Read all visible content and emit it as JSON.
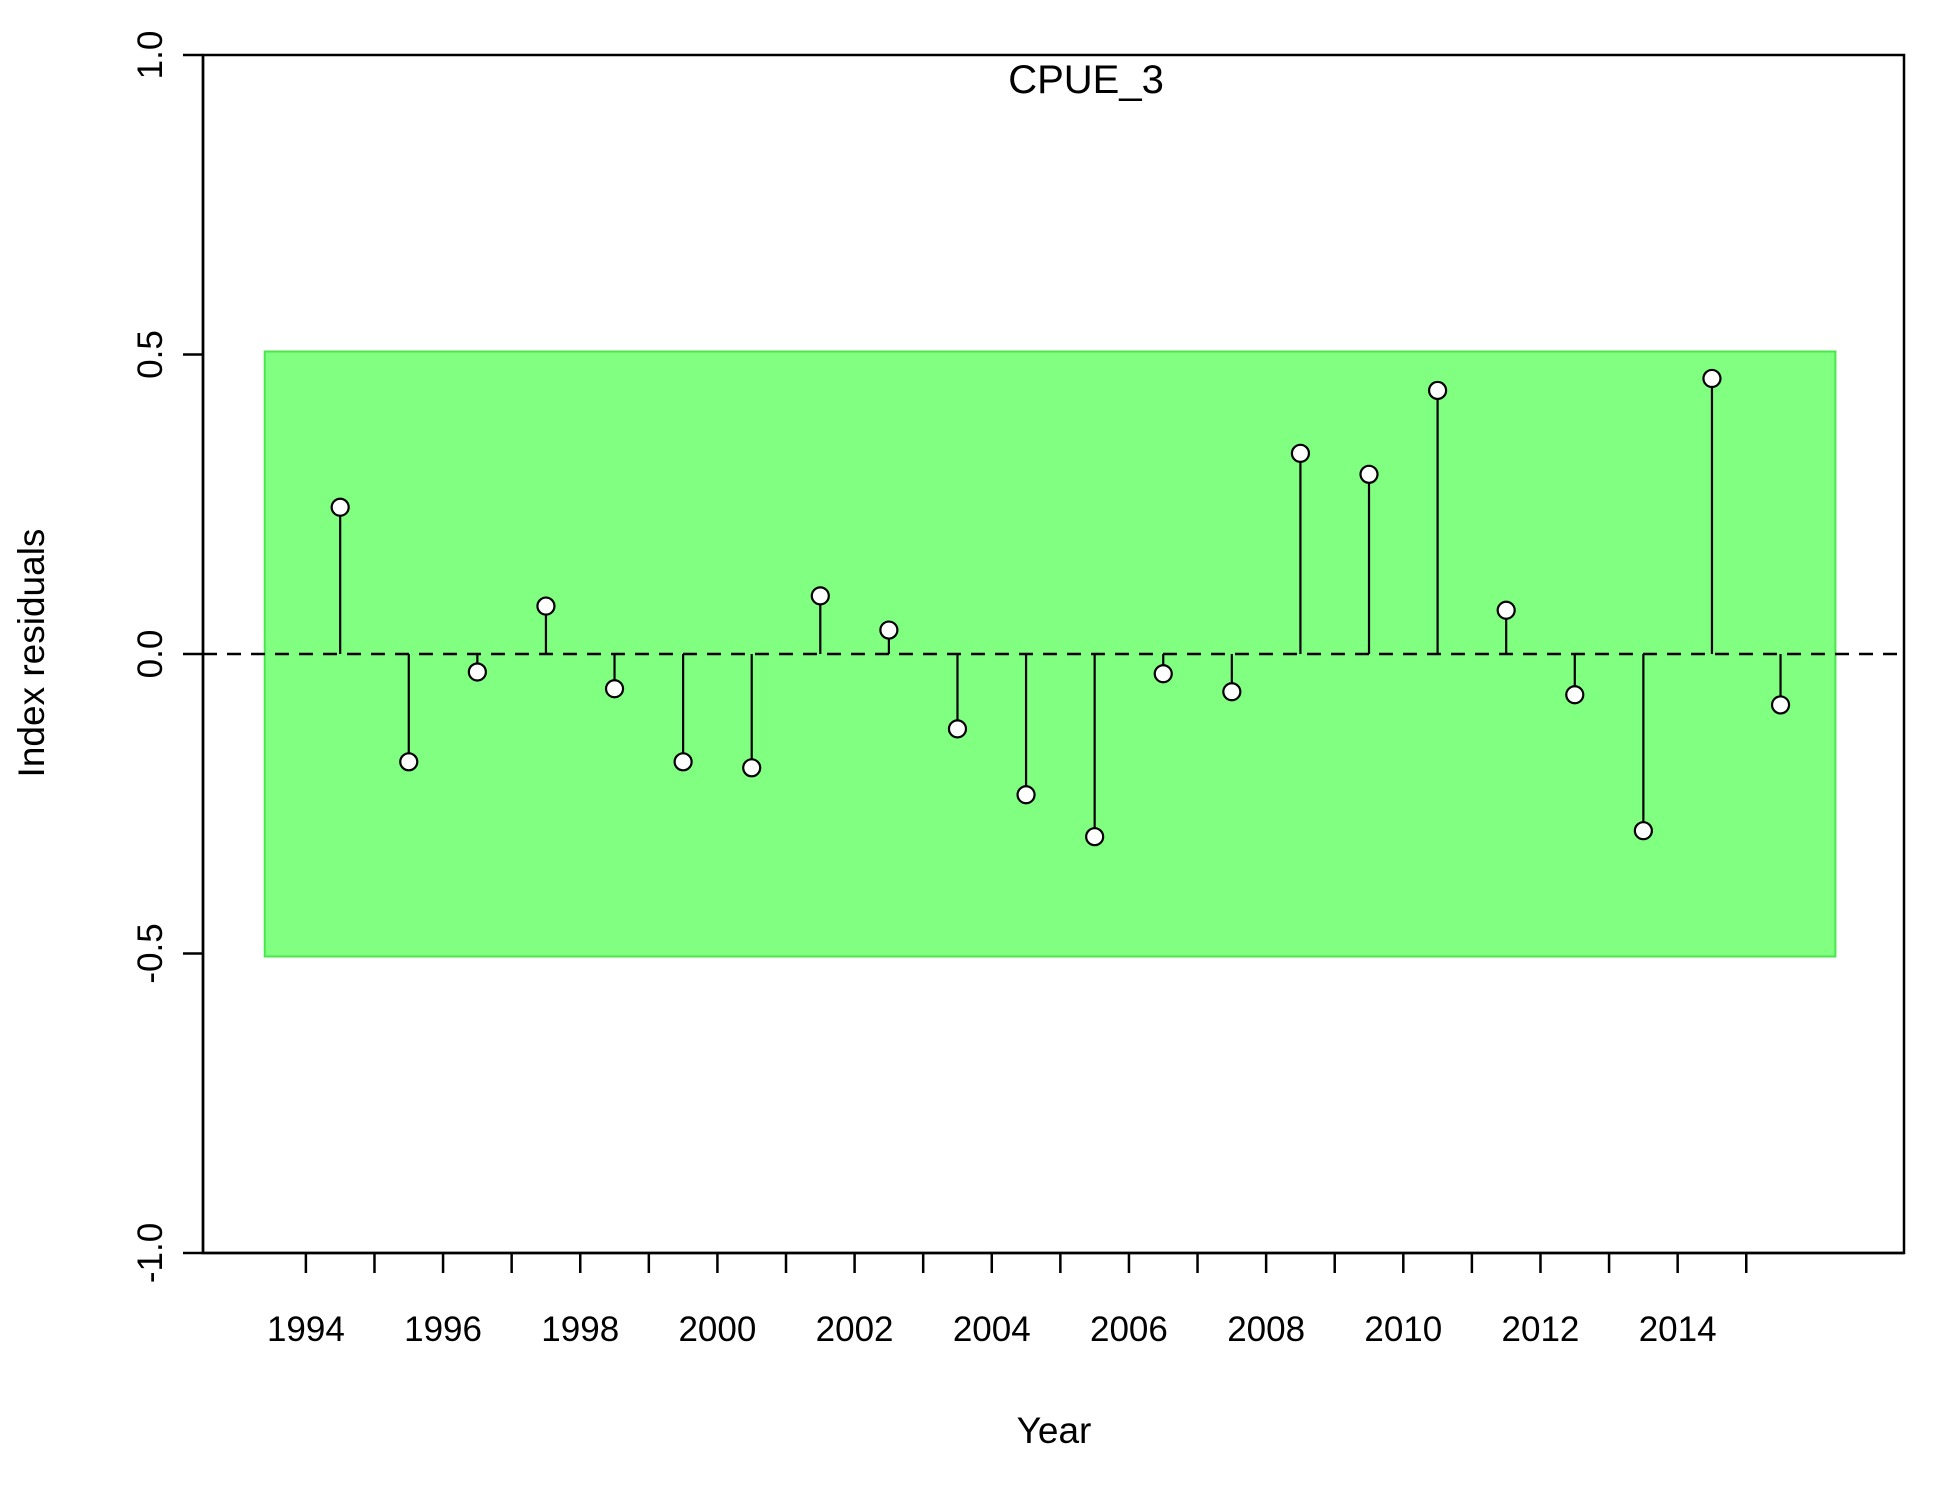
{
  "chart_data": {
    "type": "lollipop-scatter",
    "title": "CPUE_3",
    "xlabel": "Year",
    "ylabel": "Index residuals",
    "xlim": [
      1992.5,
      2017.3
    ],
    "ylim": [
      -1.0,
      1.0
    ],
    "x_ticks": [
      1994,
      1995,
      1996,
      1997,
      1998,
      1999,
      2000,
      2001,
      2002,
      2003,
      2004,
      2005,
      2006,
      2007,
      2008,
      2009,
      2010,
      2011,
      2012,
      2013,
      2014,
      2015
    ],
    "x_tick_labels": [
      "1994",
      "1996",
      "1998",
      "2000",
      "2002",
      "2004",
      "2006",
      "2008",
      "2010",
      "2012",
      "2014"
    ],
    "x_tick_label_values": [
      1994,
      1996,
      1998,
      2000,
      2002,
      2004,
      2006,
      2008,
      2010,
      2012,
      2014
    ],
    "y_ticks": [
      -1.0,
      -0.5,
      0.0,
      0.5,
      1.0
    ],
    "y_tick_labels": [
      "-1.0",
      "-0.5",
      "0.0",
      "0.5",
      "1.0"
    ],
    "reference_line": {
      "y": 0.0,
      "style": "dashed",
      "color": "#000000"
    },
    "band": {
      "x0": 1993.4,
      "x1": 2016.3,
      "y0": -0.505,
      "y1": 0.505,
      "fill": "#80ff80",
      "stroke": "#4be64b"
    },
    "series": [
      {
        "name": "residuals",
        "x": [
          1994.5,
          1995.5,
          1996.5,
          1997.5,
          1998.5,
          1999.5,
          2000.5,
          2001.5,
          2002.5,
          2003.5,
          2004.5,
          2005.5,
          2006.5,
          2007.5,
          2008.5,
          2009.5,
          2010.5,
          2011.5,
          2012.5,
          2013.5,
          2014.5,
          2015.5
        ],
        "y": [
          0.245,
          -0.18,
          -0.03,
          0.08,
          -0.058,
          -0.18,
          -0.19,
          0.097,
          0.04,
          -0.125,
          -0.235,
          -0.305,
          -0.033,
          -0.063,
          0.335,
          0.3,
          0.44,
          0.073,
          -0.068,
          -0.295,
          0.46,
          -0.085
        ]
      }
    ],
    "colors": {
      "band": "#80ff80",
      "band_border": "#4be64b",
      "axis": "#000000",
      "point_fill": "#ffffff"
    }
  }
}
